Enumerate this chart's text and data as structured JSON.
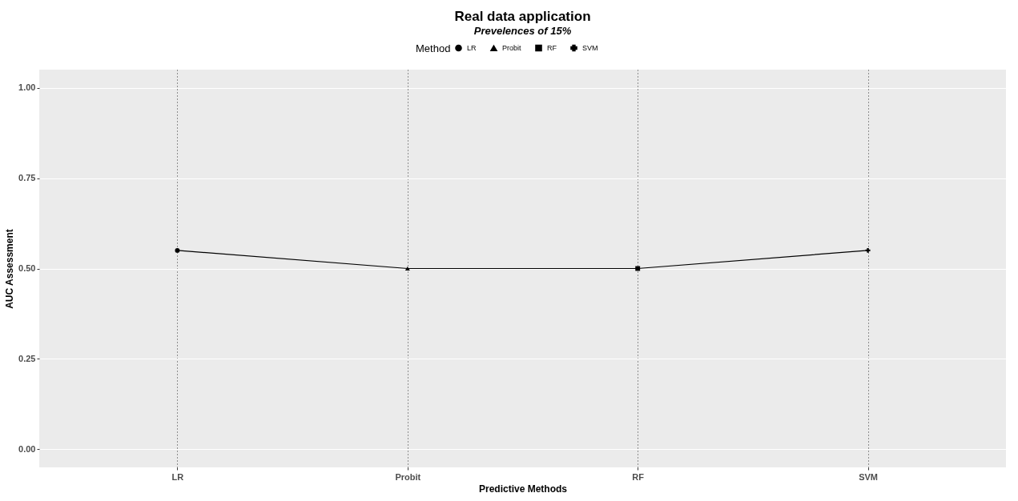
{
  "chart_data": {
    "type": "line",
    "title": "Real data application",
    "subtitle": "Prevelences of 15%",
    "xlabel": "Predictive Methods",
    "ylabel": "AUC Assessment",
    "legend_title": "Method",
    "categories": [
      "LR",
      "Probit",
      "RF",
      "SVM"
    ],
    "series": [
      {
        "type": "line",
        "color": "#000000",
        "marker": "none",
        "values": [
          0.55,
          0.5,
          0.5,
          0.55
        ]
      },
      {
        "type": "scatter",
        "name": "LR",
        "color": "#000000",
        "marker": "circle",
        "values": [
          0.55,
          null,
          null,
          null
        ]
      },
      {
        "type": "scatter",
        "name": "Probit",
        "color": "#000000",
        "marker": "triangle",
        "values": [
          null,
          0.5,
          null,
          null
        ]
      },
      {
        "type": "scatter",
        "name": "RF",
        "color": "#000000",
        "marker": "square",
        "values": [
          null,
          null,
          0.5,
          null
        ]
      },
      {
        "type": "scatter",
        "name": "SVM",
        "color": "#000000",
        "marker": "cross",
        "values": [
          null,
          null,
          null,
          0.55
        ]
      }
    ],
    "ylim": [
      -0.05,
      1.05
    ],
    "yticks": [
      {
        "value": 0,
        "label": "0.00"
      },
      {
        "value": 0.25,
        "label": "0.25"
      },
      {
        "value": 0.5,
        "label": "0.50"
      },
      {
        "value": 0.75,
        "label": "0.75"
      },
      {
        "value": 1,
        "label": "1.00"
      }
    ],
    "grid": true,
    "legend": "top"
  }
}
